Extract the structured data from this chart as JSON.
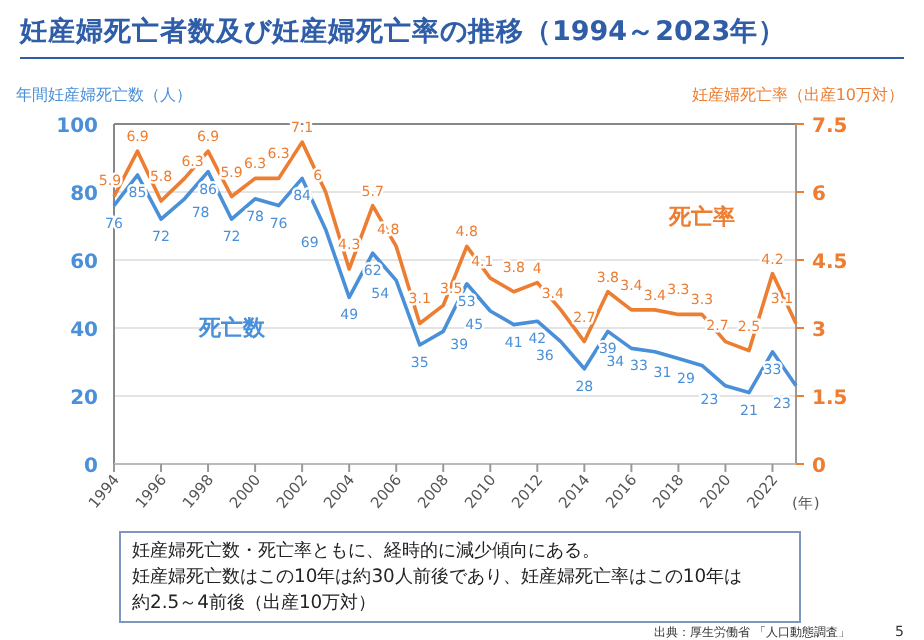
{
  "chart_data": {
    "type": "line",
    "title": "妊産婦死亡者数及び妊産婦死亡率の推移（1994～2023年）",
    "xlabel": "(年)",
    "ylabel": "年間妊産婦死亡数（人）",
    "y2label": "妊産婦死亡率（出産10万対）",
    "x": [
      1994,
      1995,
      1996,
      1997,
      1998,
      1999,
      2000,
      2001,
      2002,
      2003,
      2004,
      2005,
      2006,
      2007,
      2008,
      2009,
      2010,
      2011,
      2012,
      2013,
      2014,
      2015,
      2016,
      2017,
      2018,
      2019,
      2020,
      2021,
      2022,
      2023
    ],
    "series": [
      {
        "name": "死亡数",
        "color": "#4a90d9",
        "values": [
          76,
          85,
          72,
          78,
          86,
          72,
          78,
          76,
          84,
          69,
          49,
          62,
          54,
          35,
          39,
          53,
          45,
          41,
          42,
          36,
          28,
          39,
          34,
          33,
          31,
          29,
          23,
          21,
          33,
          23
        ]
      },
      {
        "name": "死亡率",
        "color": "#ed7d31",
        "axis": "y2",
        "values": [
          5.9,
          6.9,
          5.8,
          6.3,
          6.9,
          5.9,
          6.3,
          6.3,
          7.1,
          6,
          4.3,
          5.7,
          4.8,
          3.1,
          3.5,
          4.8,
          4.1,
          3.8,
          4,
          3.4,
          2.7,
          3.8,
          3.4,
          3.4,
          3.3,
          3.3,
          2.7,
          2.5,
          4.2,
          3.1
        ]
      }
    ],
    "xlim": [
      1994,
      2023
    ],
    "xticks": [
      1994,
      1996,
      1998,
      2000,
      2002,
      2004,
      2006,
      2008,
      2010,
      2012,
      2014,
      2016,
      2018,
      2020,
      2022
    ],
    "ylim": [
      0,
      100
    ],
    "yticks": [
      0,
      20,
      40,
      60,
      80,
      100
    ],
    "y2lim": [
      0,
      7.5
    ],
    "y2ticks": [
      0,
      1.5,
      3,
      4.5,
      6,
      7.5
    ],
    "grid": "y",
    "data_labels": true,
    "annotations": [
      "妊産婦死亡数・死亡率ともに、経時的に減少傾向にある。妊産婦死亡数はこの10年は約30人前後であり、妊産婦死亡率はこの10年は約2.5～4前後（出産10万対）",
      "出典：厚生労働省 「人口動態調査」",
      "5"
    ]
  }
}
